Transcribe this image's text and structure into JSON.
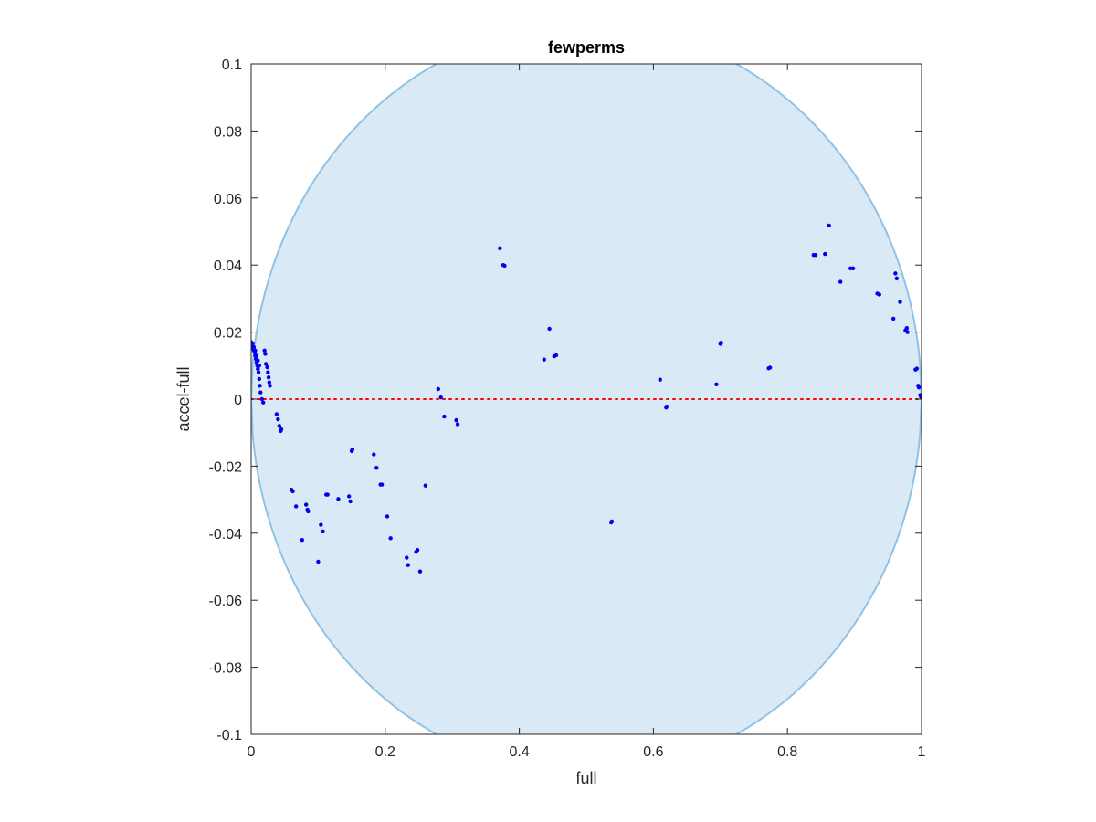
{
  "chart_data": {
    "type": "scatter",
    "title": "fewperms",
    "xlabel": "full",
    "ylabel": "accel-full",
    "xlim": [
      0,
      1
    ],
    "ylim": [
      -0.1,
      0.1
    ],
    "xticks": [
      0,
      0.2,
      0.4,
      0.6,
      0.8,
      1
    ],
    "xtick_labels": [
      "0",
      "0.2",
      "0.4",
      "0.6",
      "0.8",
      "1"
    ],
    "yticks": [
      -0.1,
      -0.08,
      -0.06,
      -0.04,
      -0.02,
      0,
      0.02,
      0.04,
      0.06,
      0.08,
      0.1
    ],
    "ytick_labels": [
      "-0.1",
      "-0.08",
      "-0.06",
      "-0.04",
      "-0.02",
      "0",
      "0.02",
      "0.04",
      "0.06",
      "0.08",
      "0.1"
    ],
    "grid": false,
    "reference_line": {
      "y": 0,
      "color": "#ff0000",
      "style": "dotted"
    },
    "band": {
      "fill": "#d9e9f5",
      "edge": "#8ec3e6",
      "bound": "sqrt(x*(1-x))/sqrt(N)",
      "N": 20
    },
    "marker_color": "#0000ee",
    "points": {
      "x": [
        0.0,
        0.001,
        0.002,
        0.003,
        0.004,
        0.005,
        0.006,
        0.007,
        0.008,
        0.009,
        0.01,
        0.011,
        0.012,
        0.013,
        0.014,
        0.016,
        0.018,
        0.002,
        0.004,
        0.006,
        0.008,
        0.01,
        0.012,
        0.02,
        0.021,
        0.022,
        0.024,
        0.025,
        0.026,
        0.027,
        0.028,
        0.038,
        0.04,
        0.042,
        0.044,
        0.045,
        0.06,
        0.062,
        0.067,
        0.076,
        0.082,
        0.084,
        0.085,
        0.1,
        0.104,
        0.107,
        0.112,
        0.114,
        0.13,
        0.146,
        0.148,
        0.15,
        0.151,
        0.183,
        0.187,
        0.193,
        0.195,
        0.203,
        0.208,
        0.232,
        0.234,
        0.246,
        0.248,
        0.252,
        0.26,
        0.279,
        0.283,
        0.288,
        0.306,
        0.308,
        0.371,
        0.376,
        0.378,
        0.437,
        0.445,
        0.452,
        0.455,
        0.537,
        0.538,
        0.61,
        0.619,
        0.62,
        0.694,
        0.7,
        0.701,
        0.772,
        0.774,
        0.839,
        0.842,
        0.856,
        0.862,
        0.879,
        0.894,
        0.898,
        0.934,
        0.937,
        0.958,
        0.961,
        0.963,
        0.968,
        0.976,
        0.978,
        0.979,
        0.991,
        0.993,
        0.995,
        0.996,
        0.998,
        0.999,
        1.0
      ],
      "y": [
        0.017,
        0.016,
        0.0155,
        0.015,
        0.0145,
        0.014,
        0.013,
        0.012,
        0.011,
        0.01,
        0.009,
        0.008,
        0.006,
        0.004,
        0.002,
        0.0,
        -0.001,
        0.0165,
        0.0155,
        0.0145,
        0.013,
        0.0115,
        0.01,
        0.0145,
        0.0135,
        0.0105,
        0.0095,
        0.008,
        0.0065,
        0.005,
        0.004,
        -0.0045,
        -0.006,
        -0.008,
        -0.0095,
        -0.009,
        -0.027,
        -0.0275,
        -0.032,
        -0.042,
        -0.0315,
        -0.033,
        -0.0335,
        -0.0485,
        -0.0375,
        -0.0395,
        -0.0285,
        -0.0285,
        -0.0298,
        -0.029,
        -0.0305,
        -0.0155,
        -0.015,
        -0.0165,
        -0.0205,
        -0.0255,
        -0.0255,
        -0.035,
        -0.0415,
        -0.0473,
        -0.0495,
        -0.0456,
        -0.045,
        -0.0514,
        -0.0258,
        0.003,
        0.0005,
        -0.0052,
        -0.0063,
        -0.0075,
        0.045,
        0.04,
        0.0398,
        0.0118,
        0.021,
        0.0128,
        0.0131,
        -0.0368,
        -0.0365,
        0.0058,
        -0.0025,
        -0.0022,
        0.0044,
        0.0165,
        0.0168,
        0.0092,
        0.0094,
        0.043,
        0.043,
        0.0433,
        0.0518,
        0.035,
        0.039,
        0.039,
        0.0315,
        0.0312,
        0.024,
        0.0375,
        0.036,
        0.029,
        0.0205,
        0.0212,
        0.02,
        0.0088,
        0.0091,
        0.004,
        0.0035,
        0.0012,
        0.0008,
        0.0004
      ]
    }
  }
}
